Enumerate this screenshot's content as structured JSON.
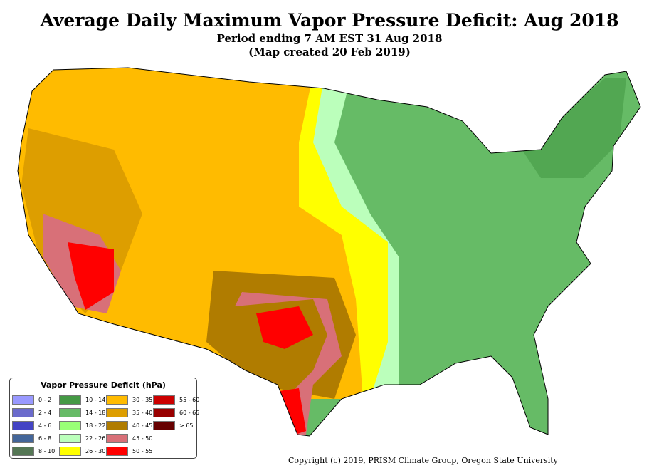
{
  "header": {
    "title": "Average Daily Maximum Vapor Pressure Deficit: Aug 2018",
    "subtitle": "Period ending 7 AM EST 31 Aug 2018",
    "created": "(Map created 20 Feb 2019)"
  },
  "legend": {
    "title": "Vapor Pressure Deficit (hPa)",
    "items": [
      {
        "label": "0 - 2",
        "color": "#9999ff"
      },
      {
        "label": "2 - 4",
        "color": "#6b6bcc"
      },
      {
        "label": "4 - 6",
        "color": "#4444c4"
      },
      {
        "label": "6 - 8",
        "color": "#446699"
      },
      {
        "label": "8 - 10",
        "color": "#557755"
      },
      {
        "label": "10 - 14",
        "color": "#449944"
      },
      {
        "label": "14 - 18",
        "color": "#66bb66"
      },
      {
        "label": "18 - 22",
        "color": "#99ff77"
      },
      {
        "label": "22 - 26",
        "color": "#bbffbb"
      },
      {
        "label": "26 - 30",
        "color": "#ffff00"
      },
      {
        "label": "30 - 35",
        "color": "#ffbb00"
      },
      {
        "label": "35 - 40",
        "color": "#dd9e00"
      },
      {
        "label": "40 - 45",
        "color": "#b07c00"
      },
      {
        "label": "45 - 50",
        "color": "#d87078"
      },
      {
        "label": "50 - 55",
        "color": "#ff0000"
      },
      {
        "label": "55 - 60",
        "color": "#cc0000"
      },
      {
        "label": "60 - 65",
        "color": "#990000"
      },
      {
        "label": "> 65",
        "color": "#660000"
      }
    ]
  },
  "footer": {
    "copyright": "Copyright (c) 2019, PRISM Climate Group, Oregon State University"
  }
}
